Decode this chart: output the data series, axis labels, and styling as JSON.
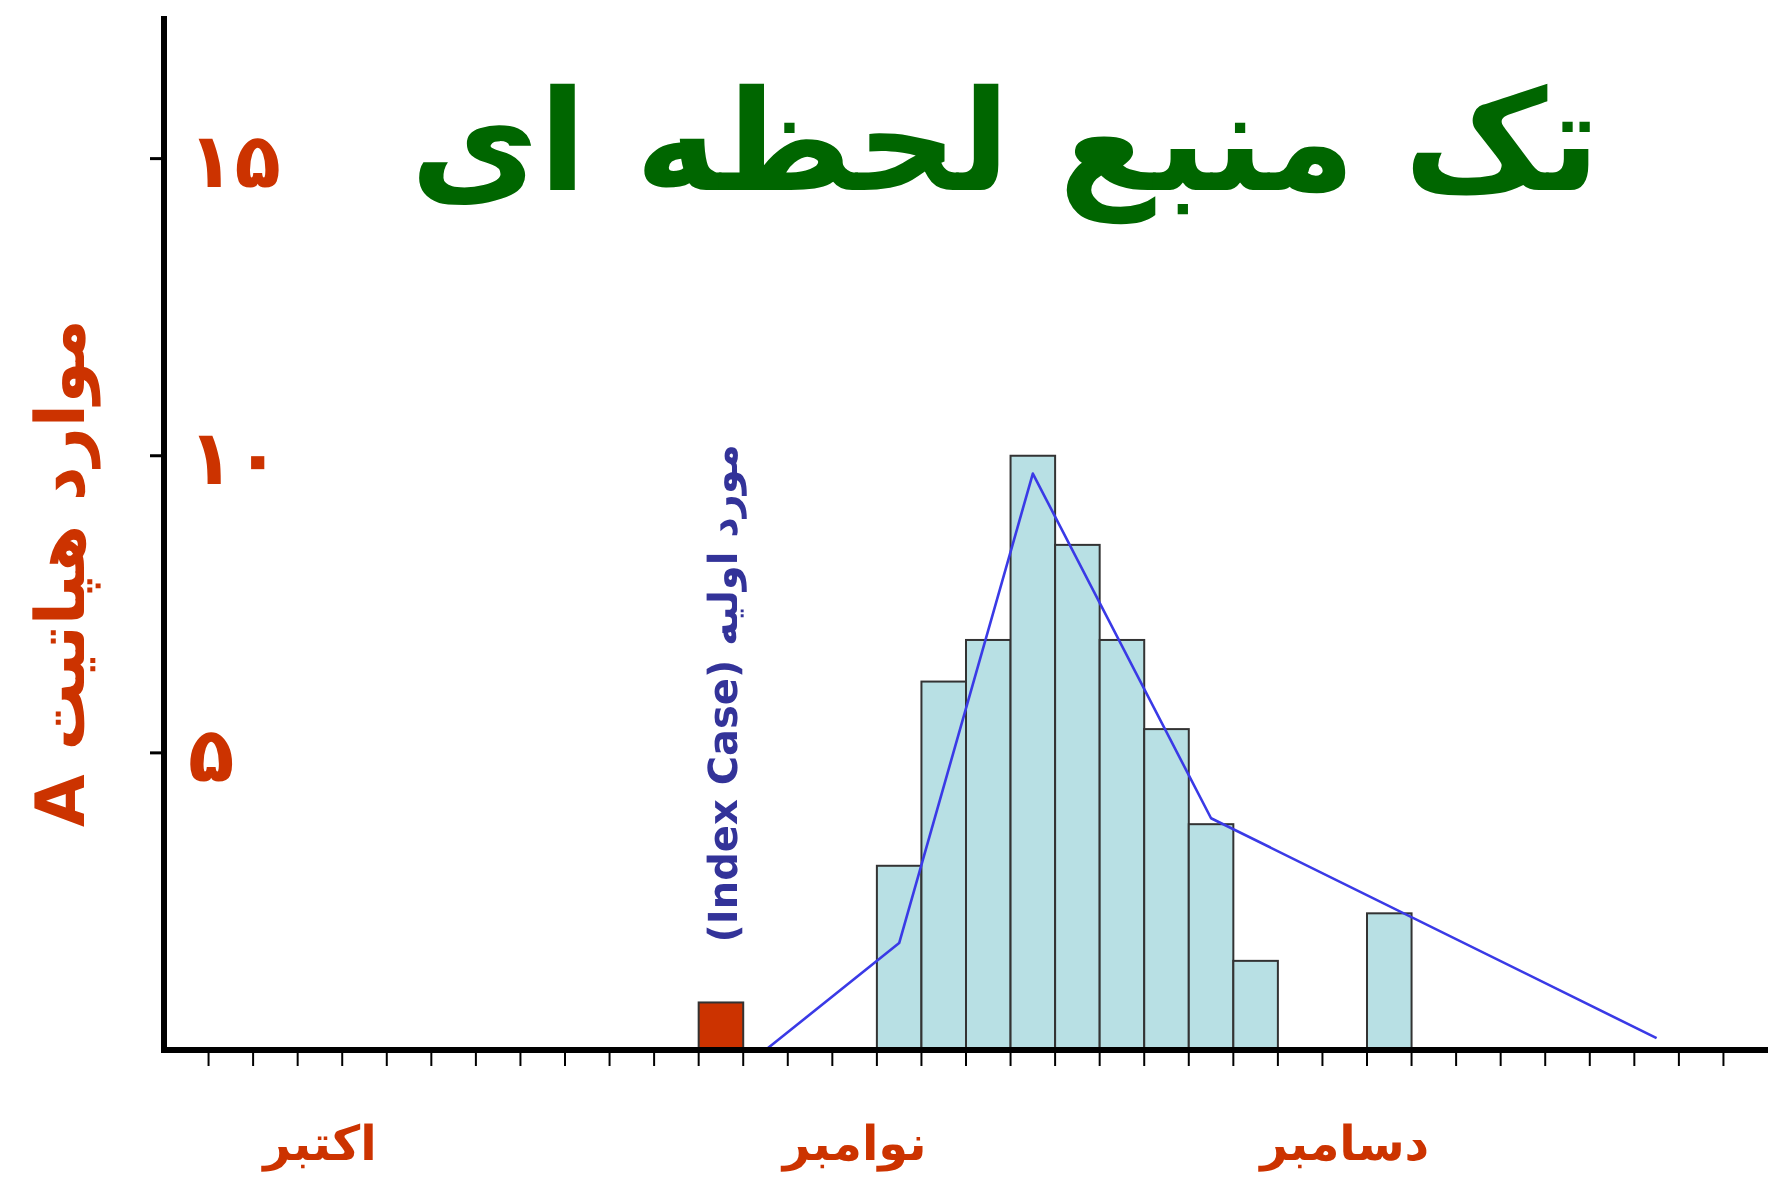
{
  "chart_data": {
    "type": "bar",
    "title": "تک منبع لحظه ای",
    "ylabel": "موارد هپاتیت A",
    "categories": [
      null,
      null,
      null,
      "اکتبر",
      null,
      null,
      null,
      null,
      null,
      null,
      null,
      null,
      null,
      null,
      null,
      "نوامبر",
      null,
      null,
      null,
      null,
      null,
      null,
      null,
      null,
      null,
      null,
      "دسامبر",
      null,
      null,
      null,
      null,
      null,
      null,
      null,
      null,
      null
    ],
    "ylim": [
      0,
      17.4
    ],
    "yticks": [
      {
        "value": 5,
        "label": "۵"
      },
      {
        "value": 10,
        "label": "۱۰"
      },
      {
        "value": 15,
        "label": "۱۵"
      }
    ],
    "series": [
      {
        "values": [
          null,
          null,
          null,
          null,
          null,
          null,
          null,
          null,
          null,
          null,
          null,
          null,
          0.8,
          null,
          null,
          null,
          3.1,
          6.2,
          6.9,
          10,
          8.5,
          6.9,
          5.4,
          3.8,
          1.5,
          null,
          null,
          2.3,
          null,
          null,
          null,
          null,
          null,
          null,
          null,
          null
        ],
        "colors": [
          null,
          null,
          null,
          null,
          null,
          null,
          null,
          null,
          null,
          null,
          null,
          null,
          "#cc3300",
          null,
          null,
          null,
          "#b8e0e4",
          "#b8e0e4",
          "#b8e0e4",
          "#b8e0e4",
          "#b8e0e4",
          "#b8e0e4",
          "#b8e0e4",
          "#b8e0e4",
          "#b8e0e4",
          null,
          null,
          "#b8e0e4",
          null,
          null,
          null,
          null,
          null,
          null,
          null,
          null
        ]
      },
      {
        "type": "line",
        "values": [
          null,
          null,
          null,
          null,
          null,
          null,
          null,
          null,
          null,
          null,
          null,
          null,
          null,
          0,
          null,
          null,
          1.8,
          null,
          null,
          9.7,
          null,
          null,
          null,
          3.9,
          null,
          null,
          null,
          null,
          null,
          null,
          null,
          null,
          null,
          0.2,
          null,
          null
        ],
        "color": "#3a3ae6"
      }
    ],
    "annotations": [
      "(Index Case) مورد اولیه"
    ]
  }
}
